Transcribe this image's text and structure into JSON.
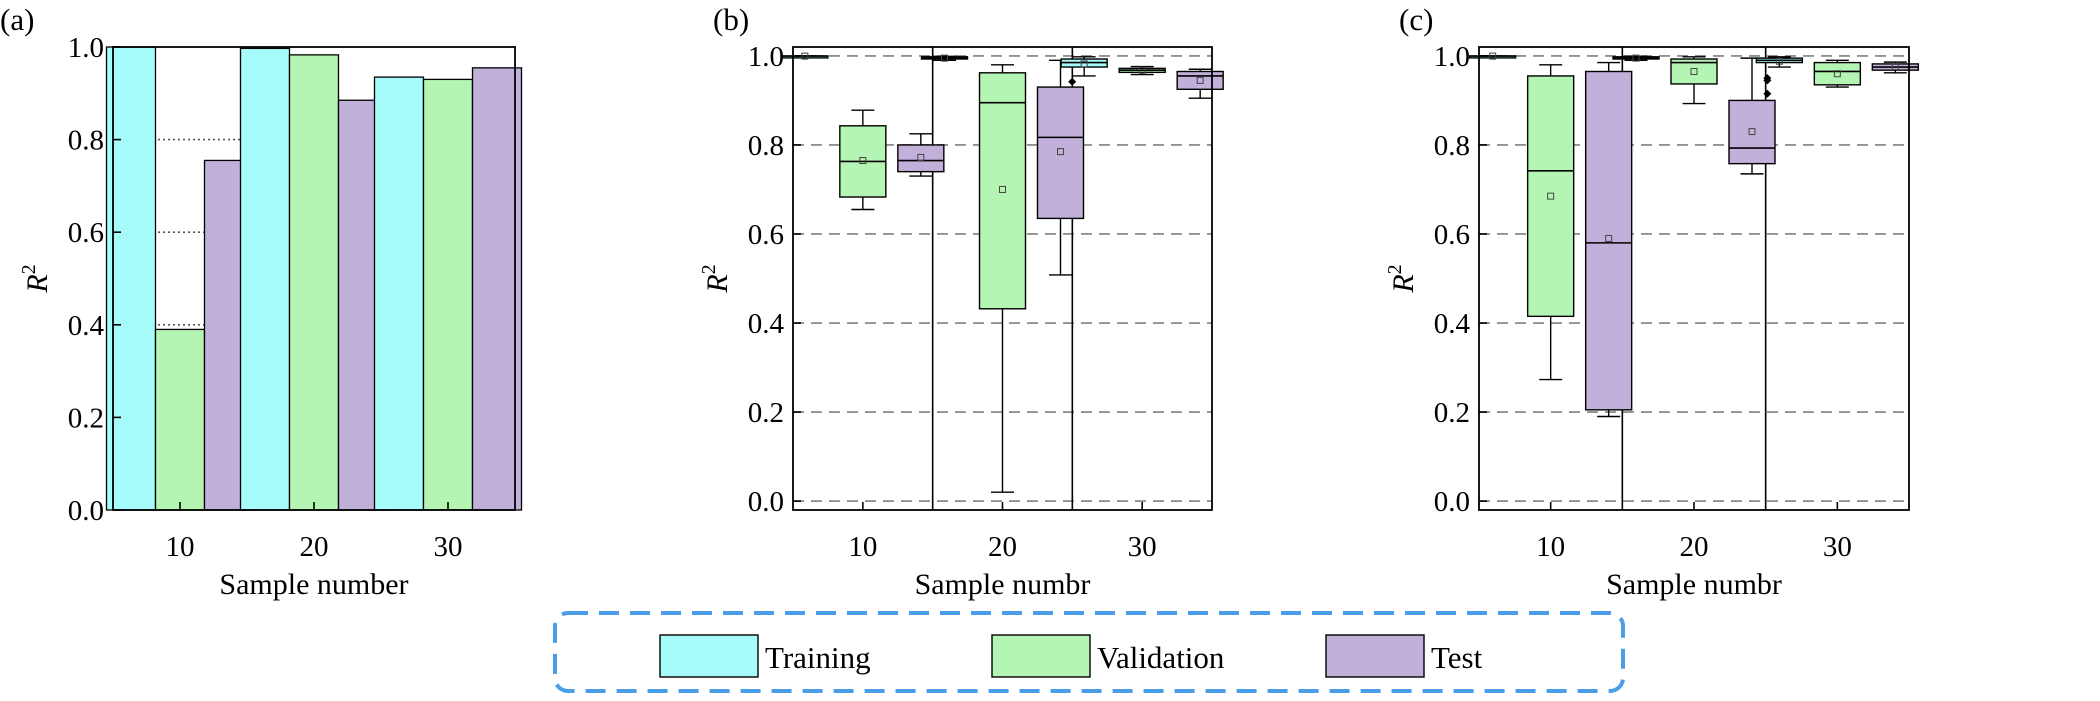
{
  "colors": {
    "Training": "#a6fbfb",
    "Validation": "#b5f5b3",
    "Test": "#c1b0d9",
    "axis": "#000000",
    "grid": "#808080",
    "legend_border": "#4a9ee8"
  },
  "legend": {
    "items": [
      {
        "key": "Training",
        "label": "Training"
      },
      {
        "key": "Validation",
        "label": "Validation"
      },
      {
        "key": "Test",
        "label": "Test"
      }
    ],
    "border_style": "dashed"
  },
  "chart_data": [
    {
      "panel_label": "(a)",
      "type": "bar",
      "categories": [
        "10",
        "20",
        "30"
      ],
      "series": [
        {
          "name": "Training",
          "values": [
            1.0,
            0.997,
            0.935
          ]
        },
        {
          "name": "Validation",
          "values": [
            0.39,
            0.983,
            0.93
          ]
        },
        {
          "name": "Test",
          "values": [
            0.755,
            0.885,
            0.955
          ]
        }
      ],
      "xlabel": "Sample number",
      "ylabel_main": "R",
      "ylabel_sup": "2",
      "ylim": [
        0,
        1.0
      ],
      "yticks": [
        "0.0",
        "0.2",
        "0.4",
        "0.6",
        "0.8",
        "1.0"
      ],
      "grid": "dotted"
    },
    {
      "panel_label": "(b)",
      "type": "box",
      "categories": [
        "10",
        "20",
        "30"
      ],
      "series_order": [
        "Training",
        "Validation",
        "Test"
      ],
      "groups": [
        {
          "category": "10",
          "boxes": [
            {
              "series": "Training",
              "min": 0.998,
              "q1": 0.999,
              "median": 0.9995,
              "q3": 1.0,
              "max": 1.0,
              "mean": 0.9995,
              "outliers": []
            },
            {
              "series": "Validation",
              "min": 0.655,
              "q1": 0.683,
              "median": 0.763,
              "q3": 0.843,
              "max": 0.878,
              "mean": 0.765,
              "outliers": []
            },
            {
              "series": "Test",
              "min": 0.73,
              "q1": 0.74,
              "median": 0.765,
              "q3": 0.8,
              "max": 0.825,
              "mean": 0.772,
              "outliers": []
            }
          ]
        },
        {
          "category": "20",
          "boxes": [
            {
              "series": "Training",
              "min": 0.99,
              "q1": 0.993,
              "median": 0.996,
              "q3": 0.998,
              "max": 0.999,
              "mean": 0.995,
              "outliers": []
            },
            {
              "series": "Validation",
              "min": 0.02,
              "q1": 0.432,
              "median": 0.895,
              "q3": 0.962,
              "max": 0.98,
              "mean": 0.7,
              "outliers": []
            },
            {
              "series": "Test",
              "min": 0.508,
              "q1": 0.635,
              "median": 0.817,
              "q3": 0.93,
              "max": 0.99,
              "mean": 0.785,
              "outliers": []
            }
          ]
        },
        {
          "category": "30",
          "boxes": [
            {
              "series": "Training",
              "min": 0.955,
              "q1": 0.975,
              "median": 0.985,
              "q3": 0.993,
              "max": 0.998,
              "mean": 0.982,
              "outliers": [
                0.942
              ]
            },
            {
              "series": "Validation",
              "min": 0.958,
              "q1": 0.963,
              "median": 0.968,
              "q3": 0.972,
              "max": 0.976,
              "mean": 0.968,
              "outliers": []
            },
            {
              "series": "Test",
              "min": 0.905,
              "q1": 0.925,
              "median": 0.955,
              "q3": 0.965,
              "max": 0.97,
              "mean": 0.945,
              "outliers": []
            }
          ]
        }
      ],
      "xlabel": "Sample numbr",
      "ylabel_main": "R",
      "ylabel_sup": "2",
      "ylim": [
        -0.02,
        1.02
      ],
      "yticks": [
        "0.0",
        "0.2",
        "0.4",
        "0.6",
        "0.8",
        "1.0"
      ],
      "grid": "dashed"
    },
    {
      "panel_label": "(c)",
      "type": "box",
      "categories": [
        "10",
        "20",
        "30"
      ],
      "series_order": [
        "Training",
        "Validation",
        "Test"
      ],
      "groups": [
        {
          "category": "10",
          "boxes": [
            {
              "series": "Training",
              "min": 0.998,
              "q1": 0.999,
              "median": 0.9995,
              "q3": 1.0,
              "max": 1.0,
              "mean": 0.9995,
              "outliers": []
            },
            {
              "series": "Validation",
              "min": 0.273,
              "q1": 0.415,
              "median": 0.742,
              "q3": 0.955,
              "max": 0.98,
              "mean": 0.685,
              "outliers": []
            },
            {
              "series": "Test",
              "min": 0.19,
              "q1": 0.205,
              "median": 0.58,
              "q3": 0.965,
              "max": 0.985,
              "mean": 0.59,
              "outliers": []
            }
          ]
        },
        {
          "category": "20",
          "boxes": [
            {
              "series": "Training",
              "min": 0.99,
              "q1": 0.993,
              "median": 0.996,
              "q3": 0.998,
              "max": 0.999,
              "mean": 0.995,
              "outliers": []
            },
            {
              "series": "Validation",
              "min": 0.893,
              "q1": 0.937,
              "median": 0.985,
              "q3": 0.993,
              "max": 0.998,
              "mean": 0.965,
              "outliers": []
            },
            {
              "series": "Test",
              "min": 0.735,
              "q1": 0.758,
              "median": 0.793,
              "q3": 0.9,
              "max": 0.995,
              "mean": 0.83,
              "outliers": []
            }
          ]
        },
        {
          "category": "30",
          "boxes": [
            {
              "series": "Training",
              "min": 0.975,
              "q1": 0.985,
              "median": 0.99,
              "q3": 0.995,
              "max": 0.998,
              "mean": 0.988,
              "outliers": [
                0.95,
                0.945,
                0.915
              ]
            },
            {
              "series": "Validation",
              "min": 0.93,
              "q1": 0.935,
              "median": 0.965,
              "q3": 0.985,
              "max": 0.99,
              "mean": 0.96,
              "outliers": []
            },
            {
              "series": "Test",
              "min": 0.962,
              "q1": 0.968,
              "median": 0.975,
              "q3": 0.982,
              "max": 0.986,
              "mean": 0.976,
              "outliers": []
            }
          ]
        }
      ],
      "xlabel": "Sample numbr",
      "ylabel_main": "R",
      "ylabel_sup": "2",
      "ylim": [
        -0.02,
        1.02
      ],
      "yticks": [
        "0.0",
        "0.2",
        "0.4",
        "0.6",
        "0.8",
        "1.0"
      ],
      "grid": "dashed"
    }
  ]
}
